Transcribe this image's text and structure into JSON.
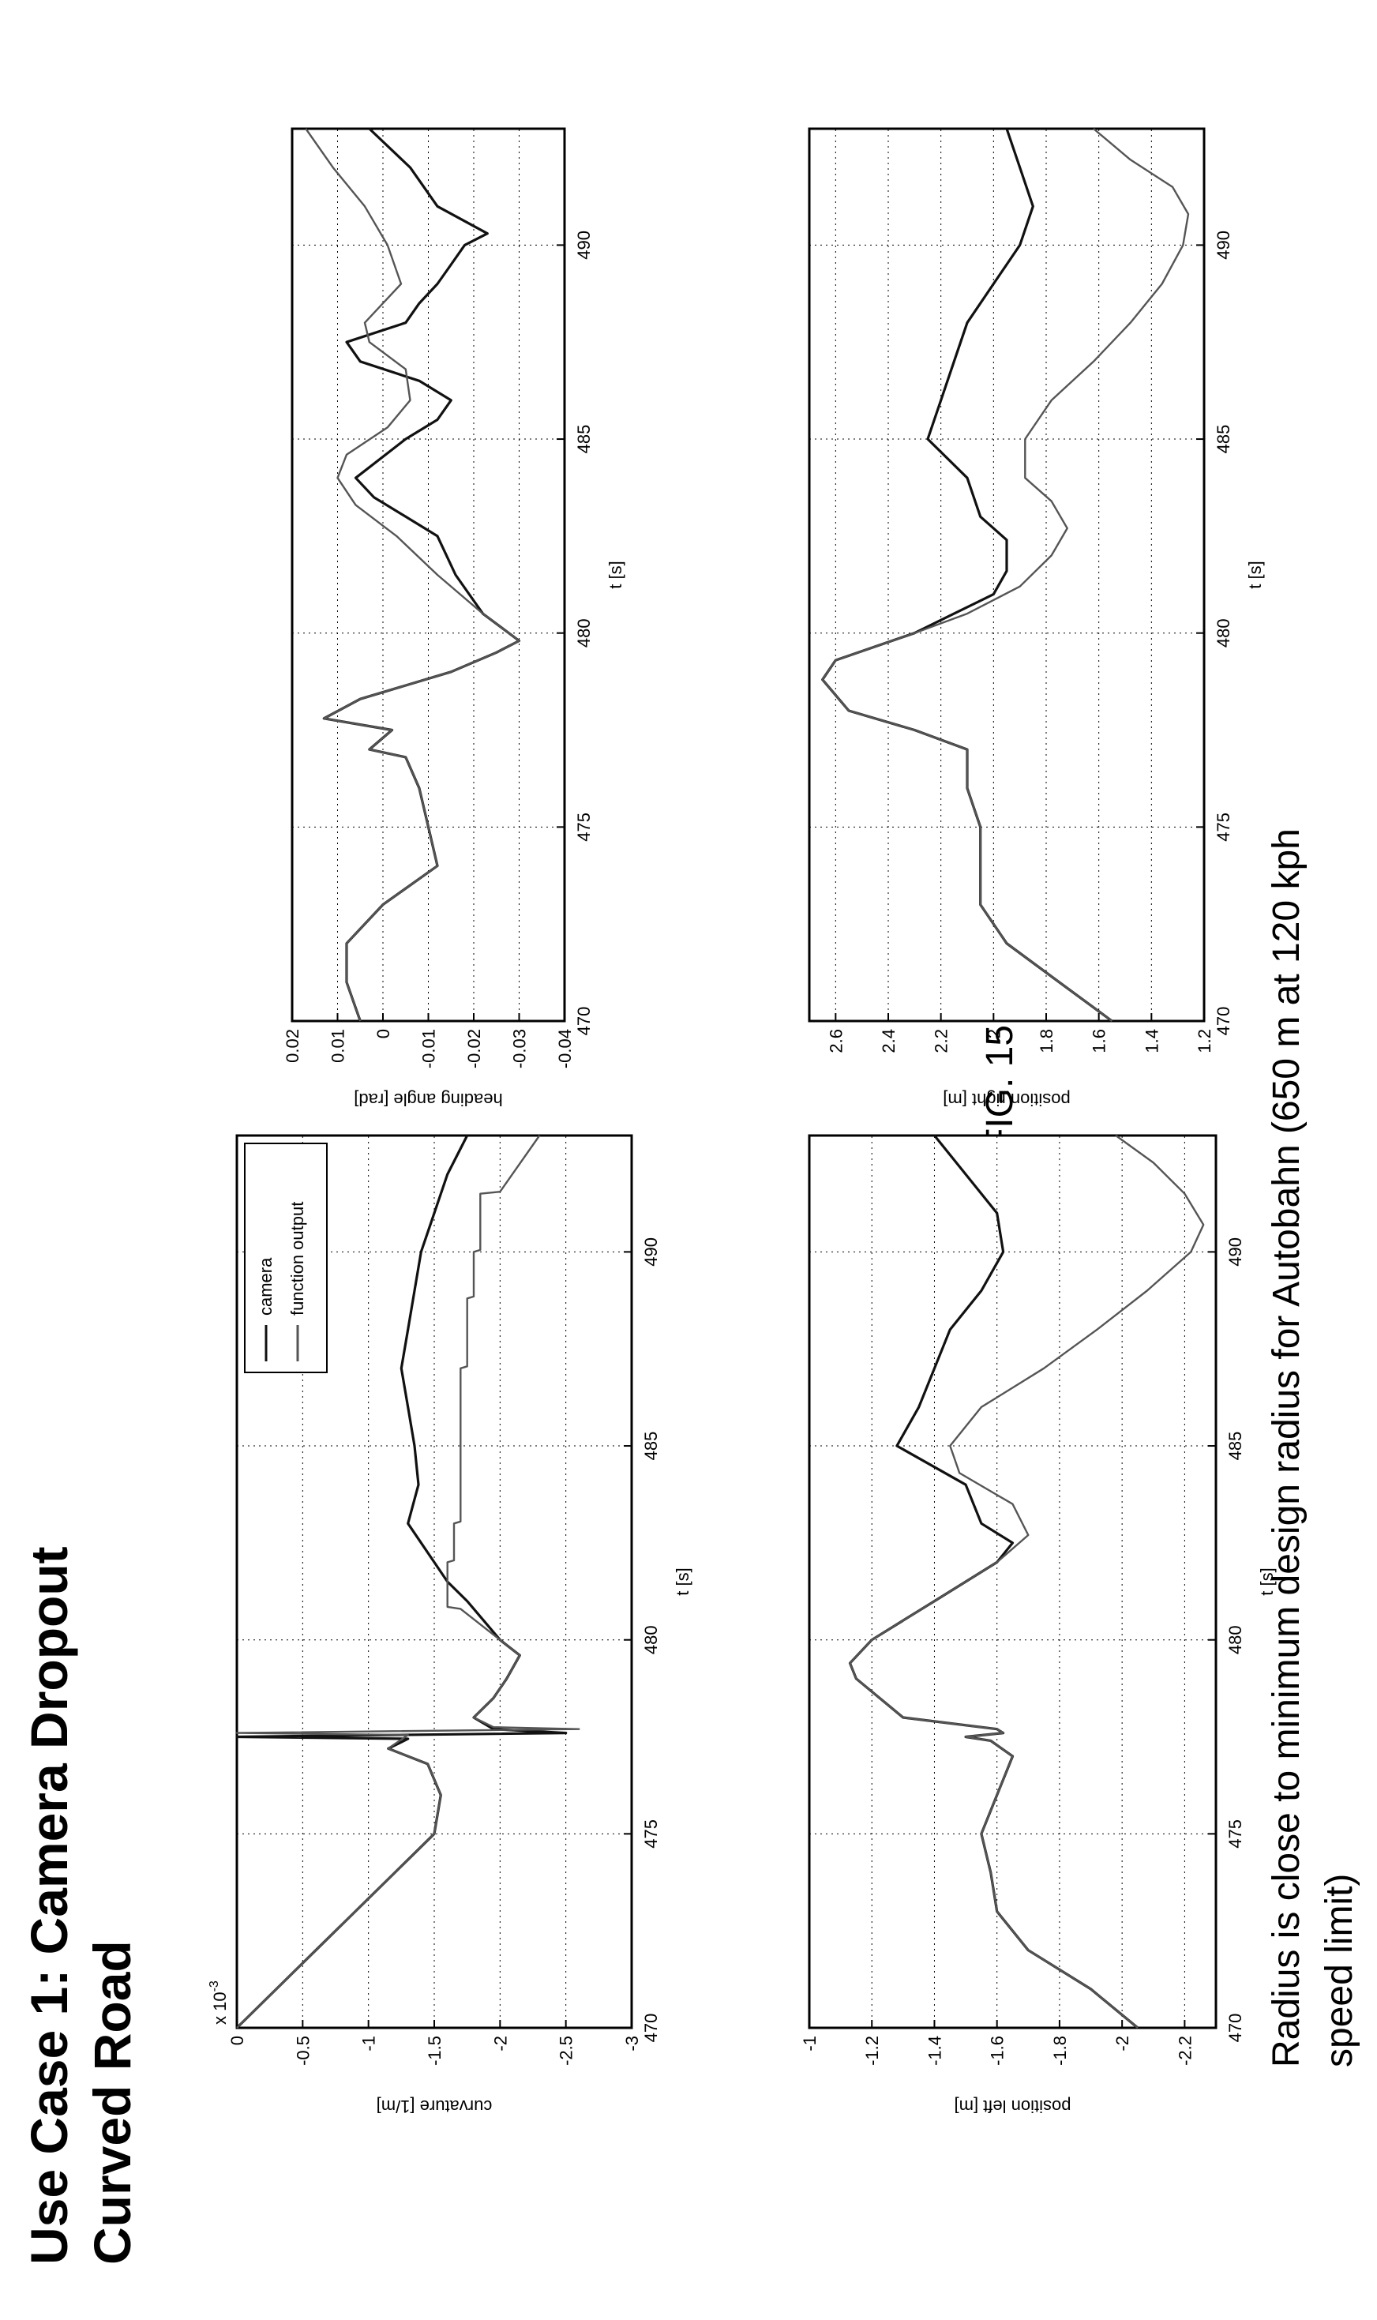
{
  "page": {
    "title_line1": "Use Case 1: Camera Dropout",
    "title_line2": "Curved Road",
    "figure_label": "FIG. 15",
    "caption_line1": "Radius is close to minimum design radius for Autobahn (650 m at 120 kph",
    "caption_line2": "speed limit)"
  },
  "chart_data": [
    {
      "id": "curvature",
      "type": "line",
      "title": "",
      "xlabel": "t [s]",
      "ylabel": "curvature [1/m]",
      "exponent_label": "x 10",
      "exponent_power": "-3",
      "xlim": [
        470,
        493
      ],
      "ylim": [
        -3,
        0
      ],
      "x_ticks": [
        470,
        475,
        480,
        485,
        490
      ],
      "x_tick_labels": [
        "470",
        "475",
        "480",
        "485",
        "490"
      ],
      "y_ticks": [
        0,
        -0.5,
        -1,
        -1.5,
        -2,
        -2.5,
        -3
      ],
      "y_tick_labels": [
        "0",
        "-0.5",
        "-1",
        "-1.5",
        "-2",
        "-2.5",
        "-3"
      ],
      "grid": true,
      "legend": {
        "placement": "top-right",
        "entries": [
          "camera",
          "function output"
        ]
      },
      "series": [
        {
          "name": "camera",
          "color": "#111111",
          "x": [
            470,
            471,
            472,
            473,
            474,
            475,
            476,
            476.8,
            477.2,
            477.45,
            477.5,
            477.6,
            477.7,
            478,
            478.5,
            479,
            479.6,
            480,
            481,
            481.5,
            482,
            483,
            484,
            485,
            486,
            487,
            488,
            489,
            490,
            491,
            492,
            493
          ],
          "y": [
            0,
            -0.3,
            -0.6,
            -0.9,
            -1.2,
            -1.5,
            -1.55,
            -1.45,
            -1.15,
            -1.3,
            0,
            -2.5,
            -1.95,
            -1.8,
            -1.95,
            -2.05,
            -2.15,
            -2.0,
            -1.75,
            -1.6,
            -1.5,
            -1.3,
            -1.38,
            -1.35,
            -1.3,
            -1.25,
            -1.3,
            -1.35,
            -1.4,
            -1.5,
            -1.6,
            -1.75
          ]
        },
        {
          "name": "function output",
          "color": "#555555",
          "x": [
            470,
            471,
            472,
            473,
            474,
            475,
            476,
            476.8,
            477.2,
            477.55,
            477.6,
            477.7,
            477.75,
            478,
            478.5,
            479,
            479.6,
            480,
            480.8,
            480.85,
            481.5,
            482,
            482.05,
            483,
            483.05,
            484,
            487,
            487.05,
            488.8,
            488.85,
            490,
            490.05,
            491.5,
            491.55,
            493
          ],
          "y": [
            0,
            -0.3,
            -0.6,
            -0.9,
            -1.2,
            -1.5,
            -1.55,
            -1.45,
            -1.15,
            -1.3,
            0,
            -2.6,
            -1.95,
            -1.8,
            -1.95,
            -2.05,
            -2.15,
            -2.0,
            -1.7,
            -1.6,
            -1.6,
            -1.6,
            -1.65,
            -1.65,
            -1.7,
            -1.7,
            -1.7,
            -1.75,
            -1.75,
            -1.8,
            -1.8,
            -1.85,
            -1.85,
            -2.0,
            -2.3
          ]
        }
      ]
    },
    {
      "id": "position-left",
      "type": "line",
      "title": "",
      "xlabel": "t [s]",
      "ylabel": "position left [m]",
      "xlim": [
        470,
        493
      ],
      "ylim": [
        -2.3,
        -1
      ],
      "x_ticks": [
        470,
        475,
        480,
        485,
        490
      ],
      "x_tick_labels": [
        "470",
        "475",
        "480",
        "485",
        "490"
      ],
      "y_ticks": [
        -1,
        -1.2,
        -1.4,
        -1.6,
        -1.8,
        -2,
        -2.2
      ],
      "y_tick_labels": [
        "-1",
        "-1.2",
        "-1.4",
        "-1.6",
        "-1.8",
        "-2",
        "-2.2"
      ],
      "grid": true,
      "series": [
        {
          "name": "",
          "color": "#111111",
          "x": [
            470,
            471,
            472,
            473,
            474,
            475,
            476,
            477,
            477.4,
            477.5,
            477.6,
            477.7,
            478,
            479,
            479.4,
            480,
            481,
            482,
            482.5,
            483,
            484,
            485,
            486,
            487,
            488,
            489,
            490,
            491,
            492,
            493
          ],
          "y": [
            -2.05,
            -1.9,
            -1.7,
            -1.6,
            -1.58,
            -1.55,
            -1.6,
            -1.65,
            -1.58,
            -1.5,
            -1.62,
            -1.6,
            -1.3,
            -1.15,
            -1.13,
            -1.2,
            -1.4,
            -1.6,
            -1.65,
            -1.55,
            -1.5,
            -1.28,
            -1.35,
            -1.4,
            -1.45,
            -1.55,
            -1.62,
            -1.6,
            -1.5,
            -1.4
          ]
        },
        {
          "name": "",
          "color": "#555555",
          "x": [
            470,
            471,
            472,
            473,
            474,
            475,
            476,
            477,
            477.4,
            477.5,
            477.6,
            477.7,
            478,
            479,
            479.4,
            480,
            481,
            482,
            482.7,
            483.5,
            484.3,
            485,
            486,
            487,
            488,
            489,
            490,
            490.7,
            491.5,
            492.3,
            493
          ],
          "y": [
            -2.05,
            -1.9,
            -1.7,
            -1.6,
            -1.58,
            -1.55,
            -1.6,
            -1.65,
            -1.58,
            -1.5,
            -1.62,
            -1.6,
            -1.3,
            -1.15,
            -1.13,
            -1.2,
            -1.4,
            -1.6,
            -1.7,
            -1.65,
            -1.48,
            -1.45,
            -1.55,
            -1.75,
            -1.92,
            -2.08,
            -2.22,
            -2.26,
            -2.2,
            -2.1,
            -1.98
          ]
        }
      ]
    },
    {
      "id": "heading-angle",
      "type": "line",
      "title": "",
      "xlabel": "t [s]",
      "ylabel": "heading angle [rad]",
      "xlim": [
        470,
        493
      ],
      "ylim": [
        -0.04,
        0.02
      ],
      "x_ticks": [
        470,
        475,
        480,
        485,
        490
      ],
      "x_tick_labels": [
        "470",
        "475",
        "480",
        "485",
        "490"
      ],
      "y_ticks": [
        0.02,
        0.01,
        0,
        -0.01,
        -0.02,
        -0.03,
        -0.04
      ],
      "y_tick_labels": [
        "0.02",
        "0.01",
        "0",
        "-0.01",
        "-0.02",
        "-0.03",
        "-0.04"
      ],
      "grid": true,
      "series": [
        {
          "name": "",
          "color": "#111111",
          "x": [
            470,
            471,
            472,
            473,
            474,
            475,
            476,
            476.8,
            477,
            477.5,
            477.8,
            478.3,
            479,
            479.5,
            479.8,
            480.5,
            481.5,
            482.5,
            483,
            483.5,
            484,
            485,
            485.5,
            486,
            486.5,
            487,
            487.5,
            488,
            488.5,
            489,
            489.5,
            490,
            490.3,
            491,
            492,
            493
          ],
          "y": [
            0.005,
            0.008,
            0.008,
            0.0,
            -0.012,
            -0.01,
            -0.008,
            -0.005,
            0.003,
            -0.002,
            0.013,
            0.005,
            -0.015,
            -0.025,
            -0.03,
            -0.022,
            -0.016,
            -0.012,
            -0.005,
            0.002,
            0.006,
            -0.005,
            -0.012,
            -0.015,
            -0.008,
            0.005,
            0.008,
            -0.005,
            -0.008,
            -0.012,
            -0.015,
            -0.018,
            -0.023,
            -0.012,
            -0.006,
            0.003
          ]
        },
        {
          "name": "",
          "color": "#555555",
          "x": [
            470,
            471,
            472,
            473,
            474,
            475,
            476,
            476.8,
            477,
            477.5,
            477.8,
            478.3,
            479,
            479.5,
            479.8,
            480.5,
            481.5,
            482.5,
            483.3,
            484,
            484.6,
            485.3,
            486,
            486.8,
            487.5,
            488,
            488.5,
            489,
            490,
            491,
            492,
            493
          ],
          "y": [
            0.005,
            0.008,
            0.008,
            0.0,
            -0.012,
            -0.01,
            -0.008,
            -0.005,
            0.003,
            -0.002,
            0.013,
            0.005,
            -0.015,
            -0.025,
            -0.03,
            -0.022,
            -0.012,
            -0.003,
            0.006,
            0.01,
            0.008,
            -0.001,
            -0.006,
            -0.005,
            0.003,
            0.004,
            0.0,
            -0.004,
            -0.001,
            0.004,
            0.011,
            0.017
          ]
        }
      ]
    },
    {
      "id": "position-right",
      "type": "line",
      "title": "",
      "xlabel": "t [s]",
      "ylabel": "position right [m]",
      "xlim": [
        470,
        493
      ],
      "ylim": [
        1.2,
        2.7
      ],
      "x_ticks": [
        470,
        475,
        480,
        485,
        490
      ],
      "x_tick_labels": [
        "470",
        "475",
        "480",
        "485",
        "490"
      ],
      "y_ticks": [
        2.6,
        2.4,
        2.2,
        2,
        1.8,
        1.6,
        1.4,
        1.2
      ],
      "y_tick_labels": [
        "2.6",
        "2.4",
        "2.2",
        "2",
        "1.8",
        "1.6",
        "1.4",
        "1.2"
      ],
      "grid": true,
      "series": [
        {
          "name": "",
          "color": "#111111",
          "x": [
            470,
            471,
            472,
            473,
            474,
            475,
            476,
            477,
            477.5,
            478,
            478.8,
            479.3,
            480,
            480.5,
            481,
            481.6,
            482.4,
            483,
            484,
            485,
            486,
            487,
            488,
            489,
            490,
            491,
            492,
            493
          ],
          "y": [
            1.55,
            1.75,
            1.95,
            2.05,
            2.05,
            2.05,
            2.1,
            2.1,
            2.3,
            2.55,
            2.65,
            2.6,
            2.3,
            2.15,
            2.0,
            1.95,
            1.95,
            2.05,
            2.1,
            2.25,
            2.2,
            2.15,
            2.1,
            2.0,
            1.9,
            1.85,
            1.9,
            1.95
          ]
        },
        {
          "name": "",
          "color": "#555555",
          "x": [
            470,
            471,
            472,
            473,
            474,
            475,
            476,
            477,
            477.5,
            478,
            478.8,
            479.3,
            480,
            480.5,
            481.2,
            482,
            482.7,
            483.4,
            484,
            485,
            486,
            487,
            488,
            489,
            490,
            490.8,
            491.5,
            492.2,
            493
          ],
          "y": [
            1.55,
            1.75,
            1.95,
            2.05,
            2.05,
            2.05,
            2.1,
            2.1,
            2.3,
            2.55,
            2.65,
            2.6,
            2.3,
            2.1,
            1.9,
            1.78,
            1.72,
            1.78,
            1.88,
            1.88,
            1.78,
            1.62,
            1.48,
            1.36,
            1.28,
            1.26,
            1.32,
            1.48,
            1.62
          ]
        }
      ]
    }
  ]
}
